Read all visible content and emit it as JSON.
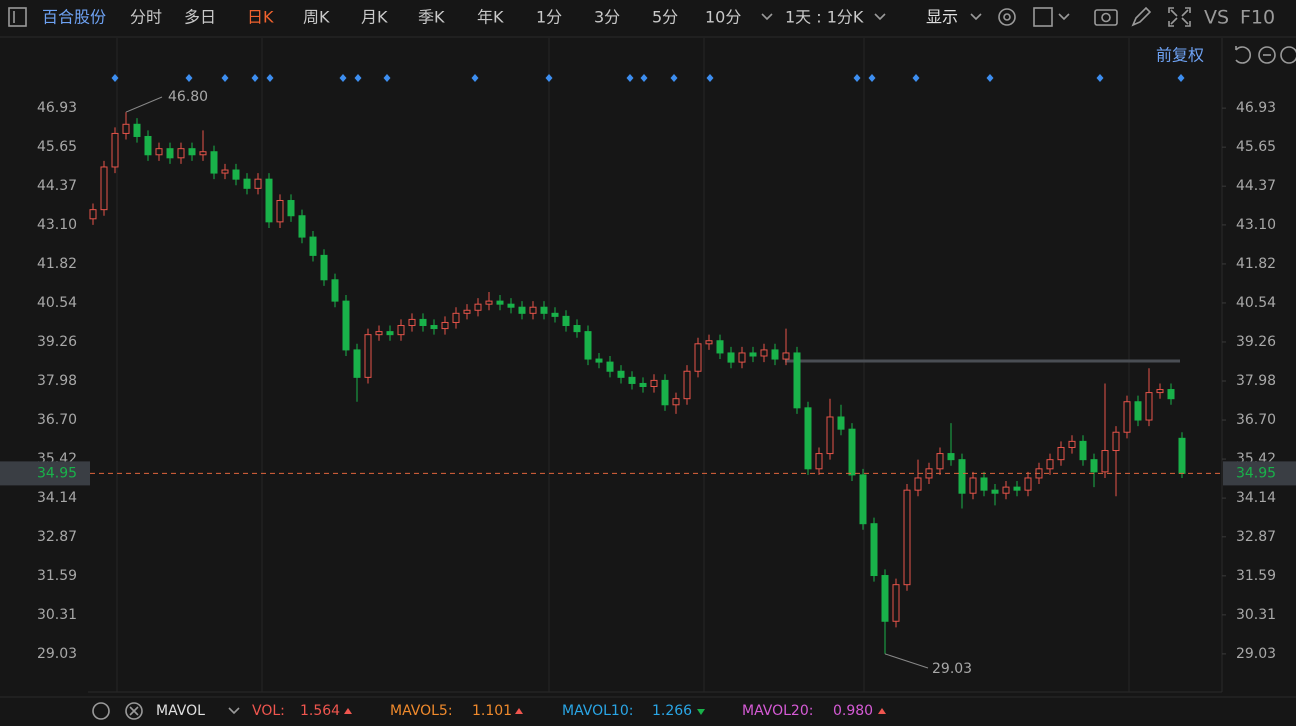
{
  "toolbar": {
    "stock": "百合股份",
    "tabs": [
      "分时",
      "多日",
      "日K",
      "周K",
      "月K",
      "季K",
      "年K",
      "1分",
      "3分",
      "5分",
      "10分"
    ],
    "active": 2,
    "period_selector": "1天 : 1分K",
    "display": "显示",
    "vs": "VS",
    "f10": "F10"
  },
  "adjust": "前复权",
  "chart_data": {
    "type": "candlestick",
    "up_color": "#e5544a",
    "down_color": "#19b24a",
    "open": [
      43.3,
      43.6,
      45.0,
      46.1,
      46.4,
      46.0,
      45.4,
      45.6,
      45.3,
      45.6,
      45.4,
      45.5,
      44.8,
      44.9,
      44.6,
      44.3,
      44.6,
      43.2,
      43.9,
      43.4,
      42.7,
      42.1,
      41.3,
      40.6,
      39.0,
      38.1,
      39.5,
      39.6,
      39.5,
      39.8,
      40.0,
      39.8,
      39.7,
      39.9,
      40.2,
      40.3,
      40.5,
      40.6,
      40.5,
      40.4,
      40.2,
      40.4,
      40.2,
      40.1,
      39.8,
      39.6,
      38.7,
      38.6,
      38.3,
      38.1,
      37.9,
      37.8,
      38.0,
      37.2,
      37.4,
      38.3,
      39.2,
      39.3,
      38.9,
      38.6,
      38.9,
      38.8,
      39.0,
      38.7,
      38.9,
      37.1,
      35.1,
      35.6,
      36.8,
      36.4,
      34.9,
      33.3,
      31.6,
      30.1,
      31.3,
      34.4,
      34.8,
      35.1,
      35.6,
      35.4,
      34.3,
      34.8,
      34.4,
      34.3,
      34.5,
      34.4,
      34.8,
      35.1,
      35.4,
      35.8,
      36.0,
      35.4,
      35.0,
      35.7,
      36.3,
      37.3,
      36.7,
      37.6,
      37.7,
      36.1
    ],
    "high": [
      43.8,
      45.2,
      46.3,
      46.8,
      46.6,
      46.2,
      45.8,
      45.8,
      45.8,
      45.8,
      46.2,
      45.7,
      45.1,
      45.1,
      44.8,
      44.8,
      44.8,
      44.1,
      44.1,
      43.6,
      42.9,
      42.3,
      41.5,
      40.8,
      39.2,
      39.7,
      39.8,
      39.8,
      40.0,
      40.2,
      40.2,
      40.0,
      40.1,
      40.4,
      40.5,
      40.7,
      40.9,
      40.8,
      40.7,
      40.6,
      40.6,
      40.6,
      40.4,
      40.3,
      40.0,
      39.8,
      38.9,
      38.8,
      38.5,
      38.3,
      38.1,
      38.2,
      38.2,
      37.6,
      38.5,
      39.4,
      39.5,
      39.5,
      39.1,
      39.1,
      39.1,
      39.2,
      39.2,
      39.7,
      39.1,
      37.3,
      35.8,
      37.4,
      37.2,
      36.6,
      35.1,
      33.5,
      31.8,
      31.5,
      34.6,
      35.4,
      35.3,
      35.8,
      36.6,
      35.6,
      35.0,
      35.0,
      34.6,
      34.7,
      34.7,
      35.0,
      35.3,
      35.6,
      36.0,
      36.2,
      36.2,
      35.6,
      37.9,
      36.5,
      37.5,
      37.5,
      38.4,
      37.9,
      37.9,
      36.3
    ],
    "low": [
      43.1,
      43.4,
      44.8,
      45.9,
      45.8,
      45.2,
      45.2,
      45.1,
      45.1,
      45.2,
      45.2,
      44.6,
      44.6,
      44.4,
      44.1,
      44.1,
      43.0,
      43.0,
      43.2,
      42.5,
      41.9,
      41.1,
      40.4,
      38.8,
      37.3,
      37.9,
      39.3,
      39.3,
      39.3,
      39.6,
      39.6,
      39.5,
      39.5,
      39.7,
      40.0,
      40.1,
      40.3,
      40.3,
      40.2,
      40.0,
      40.0,
      40.0,
      39.9,
      39.6,
      39.4,
      38.5,
      38.4,
      38.1,
      37.9,
      37.7,
      37.6,
      37.6,
      37.0,
      36.9,
      37.2,
      38.1,
      39.0,
      38.7,
      38.4,
      38.4,
      38.6,
      38.6,
      38.5,
      38.5,
      36.9,
      34.9,
      34.9,
      35.4,
      36.2,
      34.7,
      33.1,
      31.4,
      29.03,
      29.9,
      31.1,
      34.2,
      34.6,
      34.9,
      35.2,
      33.8,
      34.1,
      34.2,
      33.9,
      34.1,
      34.2,
      34.2,
      34.6,
      34.9,
      35.2,
      35.6,
      35.2,
      34.5,
      34.8,
      34.2,
      36.1,
      36.5,
      36.5,
      37.4,
      37.2,
      34.8
    ],
    "close": [
      43.6,
      45.0,
      46.1,
      46.4,
      46.0,
      45.4,
      45.6,
      45.3,
      45.6,
      45.4,
      45.5,
      44.8,
      44.9,
      44.6,
      44.3,
      44.6,
      43.2,
      43.9,
      43.4,
      42.7,
      42.1,
      41.3,
      40.6,
      39.0,
      38.1,
      39.5,
      39.6,
      39.5,
      39.8,
      40.0,
      39.8,
      39.7,
      39.9,
      40.2,
      40.3,
      40.5,
      40.6,
      40.5,
      40.4,
      40.2,
      40.4,
      40.2,
      40.1,
      39.8,
      39.6,
      38.7,
      38.6,
      38.3,
      38.1,
      37.9,
      37.8,
      38.0,
      37.2,
      37.4,
      38.3,
      39.2,
      39.3,
      38.9,
      38.6,
      38.9,
      38.8,
      39.0,
      38.7,
      38.9,
      37.1,
      35.1,
      35.6,
      36.8,
      36.4,
      34.9,
      33.3,
      31.6,
      30.1,
      31.3,
      34.4,
      34.8,
      35.1,
      35.6,
      35.4,
      34.3,
      34.8,
      34.4,
      34.3,
      34.5,
      34.4,
      34.8,
      35.1,
      35.4,
      35.8,
      36.0,
      35.4,
      35.0,
      35.7,
      36.3,
      37.3,
      36.7,
      37.6,
      37.7,
      37.4,
      34.95
    ],
    "ylim": [
      27.78,
      49.23
    ],
    "yticks": [
      46.93,
      45.65,
      44.37,
      {
        "value": 43.1,
        "label": "43.10"
      },
      41.82,
      40.54,
      39.26,
      37.98,
      {
        "value": 36.7,
        "label": "36.70"
      },
      35.42,
      34.14,
      32.87,
      31.59,
      30.31,
      29.03
    ],
    "annotations": [
      "46.80",
      "29.03"
    ],
    "last_price": {
      "value": 34.95,
      "label": "34.95"
    }
  },
  "indicator": {
    "name": "MAVOL",
    "items": [
      {
        "label": "VOL:",
        "value": "1.564",
        "color": "#f0564f",
        "trend": "up"
      },
      {
        "label": "MAVOL5:",
        "value": "1.101",
        "color": "#f08a2c",
        "trend": "up"
      },
      {
        "label": "MAVOL10:",
        "value": "1.266",
        "color": "#2aa6e6",
        "trend": "down"
      },
      {
        "label": "MAVOL20:",
        "value": "0.980",
        "color": "#d65bd6",
        "trend": "up"
      }
    ]
  }
}
